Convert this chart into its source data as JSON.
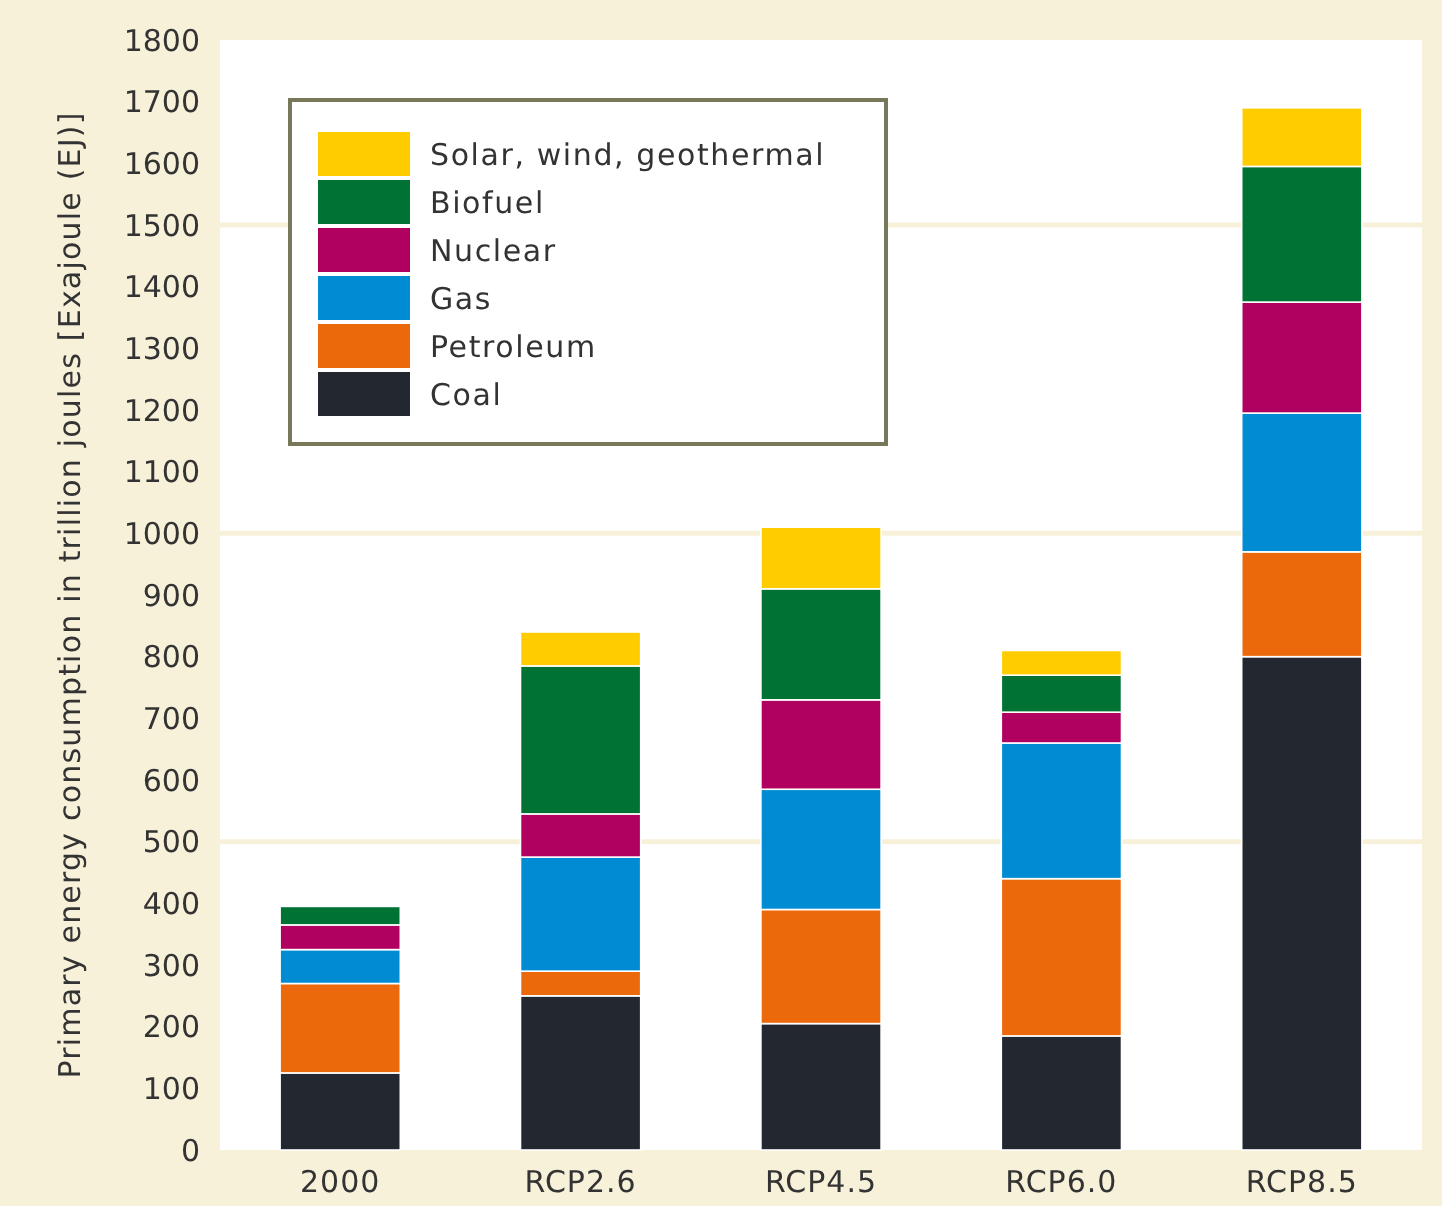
{
  "chart_data": {
    "type": "bar",
    "stacked": true,
    "ylabel": "Primary energy consumption in trillion joules [Exajoule (EJ)]",
    "categories": [
      "2000",
      "RCP2.6",
      "RCP4.5",
      "RCP6.0",
      "RCP8.5"
    ],
    "series": [
      {
        "name": "Coal",
        "color": "#23272f",
        "values": [
          125,
          250,
          205,
          185,
          800
        ]
      },
      {
        "name": "Petroleum",
        "color": "#eb690b",
        "values": [
          145,
          40,
          185,
          255,
          170
        ]
      },
      {
        "name": "Gas",
        "color": "#008bd2",
        "values": [
          55,
          185,
          195,
          220,
          225
        ]
      },
      {
        "name": "Nuclear",
        "color": "#b00060",
        "values": [
          40,
          70,
          145,
          50,
          180
        ]
      },
      {
        "name": "Biofuel",
        "color": "#007233",
        "values": [
          30,
          240,
          180,
          60,
          220
        ]
      },
      {
        "name": "Solar, wind, geothermal",
        "color": "#ffcc00",
        "values": [
          0,
          55,
          100,
          40,
          95
        ]
      }
    ],
    "ylim": [
      0,
      1800
    ],
    "yticks": [
      0,
      100,
      200,
      300,
      400,
      500,
      600,
      700,
      800,
      900,
      1000,
      1100,
      1200,
      1300,
      1400,
      1500,
      1600,
      1700,
      1800
    ],
    "ref_lines": [
      {
        "axis": "y",
        "value": 500,
        "color": "#f8f1da"
      },
      {
        "axis": "y",
        "value": 1000,
        "color": "#f8f1da"
      },
      {
        "axis": "y",
        "value": 1500,
        "color": "#f8f1da"
      }
    ],
    "legend": "top left"
  }
}
